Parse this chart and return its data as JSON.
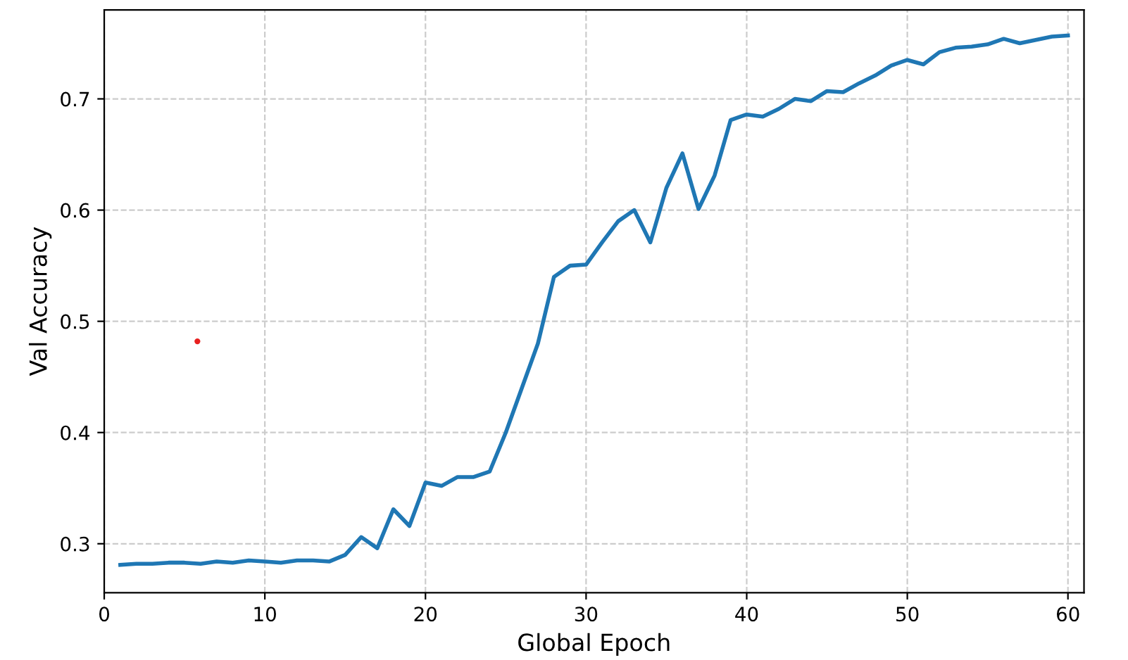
{
  "chart_data": {
    "type": "line",
    "xlabel": "Global Epoch",
    "ylabel": "Val Accuracy",
    "xlim": [
      0,
      61
    ],
    "xticks": [
      0,
      10,
      20,
      30,
      40,
      50,
      60
    ],
    "ylim": [
      0.256,
      0.78
    ],
    "yticks": [
      0.3,
      0.4,
      0.5,
      0.6,
      0.7
    ],
    "grid": true,
    "line_style": "solid",
    "series": [
      {
        "color": "#1f77b4",
        "marker": "none",
        "x": [
          1,
          2,
          3,
          4,
          5,
          6,
          7,
          8,
          9,
          10,
          11,
          12,
          13,
          14,
          15,
          16,
          17,
          18,
          19,
          20,
          21,
          22,
          23,
          24,
          25,
          26,
          27,
          28,
          29,
          30,
          31,
          32,
          33,
          34,
          35,
          36,
          37,
          38,
          39,
          40,
          41,
          42,
          43,
          44,
          45,
          46,
          47,
          48,
          49,
          50,
          51,
          52,
          53,
          54,
          55,
          56,
          57,
          58,
          59,
          60
        ],
        "values": [
          0.281,
          0.282,
          0.282,
          0.283,
          0.283,
          0.282,
          0.284,
          0.283,
          0.285,
          0.284,
          0.283,
          0.285,
          0.285,
          0.284,
          0.29,
          0.306,
          0.296,
          0.331,
          0.316,
          0.355,
          0.352,
          0.36,
          0.36,
          0.365,
          0.4,
          0.44,
          0.48,
          0.54,
          0.55,
          0.551,
          0.571,
          0.59,
          0.6,
          0.571,
          0.62,
          0.651,
          0.601,
          0.631,
          0.681,
          0.686,
          0.684,
          0.691,
          0.7,
          0.698,
          0.707,
          0.706,
          0.714,
          0.721,
          0.73,
          0.735,
          0.731,
          0.742,
          0.746,
          0.747,
          0.749,
          0.754,
          0.75,
          0.753,
          0.756,
          0.757
        ]
      },
      {
        "type": "scatter",
        "color": "#e8201f",
        "x": [
          5.8
        ],
        "values": [
          0.482
        ]
      }
    ]
  }
}
